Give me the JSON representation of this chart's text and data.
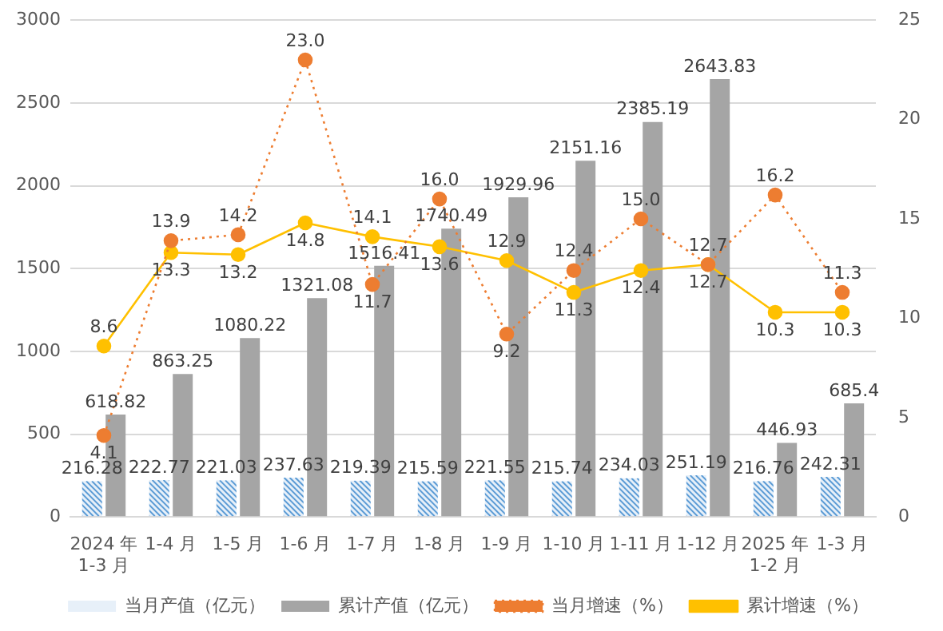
{
  "chart_data": {
    "type": "bar",
    "categories": [
      "2024 年 1-3 月",
      "1-4 月",
      "1-5 月",
      "1-6 月",
      "1-7 月",
      "1-8 月",
      "1-9 月",
      "1-10 月",
      "1-11 月",
      "1-12 月",
      "2025 年 1-2 月",
      "1-3 月"
    ],
    "series": [
      {
        "name": "当月产值（亿元）",
        "color": "#5b9bd5",
        "values": [
          216.28,
          222.77,
          221.03,
          237.63,
          219.39,
          215.59,
          221.55,
          215.74,
          234.03,
          251.19,
          216.76,
          242.31
        ]
      },
      {
        "name": "累计产值（亿元）",
        "color": "#a5a5a5",
        "values": [
          618.82,
          863.25,
          1080.22,
          1321.08,
          1516.41,
          1740.49,
          1929.96,
          2151.16,
          2385.19,
          2643.83,
          446.93,
          685.4
        ]
      },
      {
        "name": "当月增速（%）",
        "type": "line",
        "axis": "y2",
        "color": "#ed7d31",
        "line_style": "dotted",
        "marker": "circle",
        "values": [
          4.1,
          13.9,
          14.2,
          23.0,
          11.7,
          16.0,
          9.2,
          12.4,
          15.0,
          12.7,
          16.2,
          11.3
        ],
        "value_labels": [
          "4.1",
          "13.9",
          "14.2",
          "23.0",
          "11.7",
          "16.0",
          "9.2",
          "12.4",
          "15.0",
          "12.7",
          "16.2",
          "11.3"
        ]
      },
      {
        "name": "累计增速（%）",
        "type": "line",
        "axis": "y2",
        "color": "#ffc000",
        "line_style": "solid",
        "marker": "circle",
        "values": [
          8.6,
          13.3,
          13.2,
          14.8,
          14.1,
          13.6,
          12.9,
          11.3,
          12.4,
          12.7,
          10.3,
          10.3
        ]
      }
    ],
    "ylim": [
      0,
      3000
    ],
    "yticks": [
      0,
      500,
      1000,
      1500,
      2000,
      2500,
      3000
    ],
    "y2lim": [
      0,
      25
    ],
    "y2ticks": [
      0,
      5,
      10,
      15,
      20,
      25
    ],
    "grid": "y",
    "legend": "bottom",
    "data_labels": true
  }
}
